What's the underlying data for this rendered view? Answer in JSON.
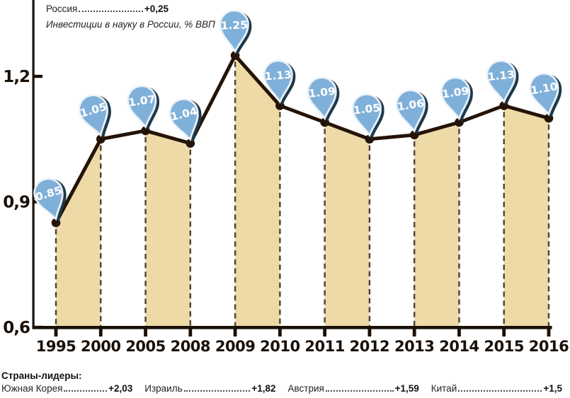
{
  "header": {
    "russia_label": "Россия",
    "russia_value": "+0,25",
    "subtitle": "Инвестиции в науку в России, % ВВП"
  },
  "chart_data": {
    "type": "line",
    "title": "Инвестиции в науку в России, % ВВП",
    "categories": [
      "1995",
      "2000",
      "2005",
      "2008",
      "2009",
      "2010",
      "2011",
      "2012",
      "2013",
      "2014",
      "2015",
      "2016"
    ],
    "values": [
      0.85,
      1.05,
      1.07,
      1.04,
      1.25,
      1.13,
      1.09,
      1.05,
      1.06,
      1.09,
      1.13,
      1.1
    ],
    "point_labels": [
      "0.85",
      "1.05",
      "1.07",
      "1.04",
      "1.25",
      "1.13",
      "1.09",
      "1.05",
      "1.06",
      "1.09",
      "1.13",
      "1.10"
    ],
    "y_ticks": [
      {
        "label": "1,2",
        "value": 1.2
      },
      {
        "label": "0,9",
        "value": 0.9
      },
      {
        "label": "0,6",
        "value": 0.6
      }
    ],
    "ylim": [
      0.6,
      1.32
    ],
    "grid": "dashed vertical droplines at every point",
    "legend_position": "none",
    "shaded_band_pairs": [
      [
        "1995",
        "2000"
      ],
      [
        "2005",
        "2008"
      ],
      [
        "2009",
        "2010"
      ],
      [
        "2011",
        "2012"
      ],
      [
        "2013",
        "2014"
      ],
      [
        "2015",
        "2016"
      ]
    ]
  },
  "footer": {
    "heading": "Страны-лидеры:",
    "leaders": [
      {
        "label": "Южная Корея",
        "value": "+2,03"
      },
      {
        "label": "Израиль",
        "value": "+1,82"
      },
      {
        "label": "Австрия",
        "value": "+1,59"
      },
      {
        "label": "Китай",
        "value": "+1,5"
      }
    ]
  },
  "colors": {
    "pin_fill": "#7fb0d9",
    "pin_rim": "#ecf3fa",
    "pin_shadow": "#1d3949",
    "pin_text": "#ffffff",
    "band_fill": "#eddaa7",
    "line": "#241307",
    "dash": "#4e4034",
    "axis": "#1a1007",
    "text": "#1a1a1a"
  }
}
